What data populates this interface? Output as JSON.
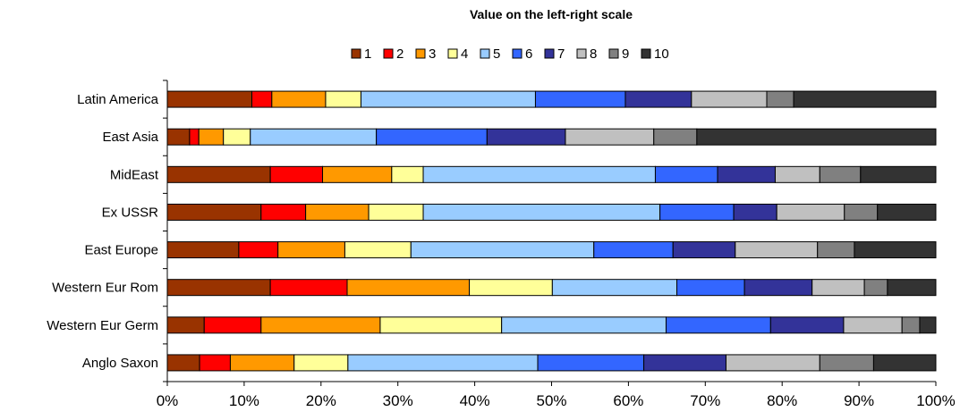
{
  "chart_data": {
    "type": "bar",
    "orientation": "horizontal",
    "stacked": "percent",
    "title": "Value on the left-right scale",
    "xlabel": "",
    "ylabel": "",
    "xlim": [
      0,
      100
    ],
    "x_ticks": [
      "0%",
      "10%",
      "20%",
      "30%",
      "40%",
      "50%",
      "60%",
      "70%",
      "80%",
      "90%",
      "100%"
    ],
    "legend_position": "top",
    "grid": false,
    "categories": [
      "Latin America",
      "East Asia",
      "MidEast",
      "Ex USSR",
      "East Europe",
      "Western Eur Rom",
      "Western Eur Germ",
      "Anglo Saxon"
    ],
    "series": [
      {
        "name": "1",
        "color": "#993300",
        "values": [
          11.0,
          2.9,
          13.4,
          12.2,
          9.3,
          13.4,
          4.8,
          4.2
        ]
      },
      {
        "name": "2",
        "color": "#FF0000",
        "values": [
          2.6,
          1.2,
          6.8,
          5.8,
          5.1,
          10.0,
          7.4,
          4.0
        ]
      },
      {
        "name": "3",
        "color": "#FF9900",
        "values": [
          7.0,
          3.2,
          9.0,
          8.2,
          8.7,
          15.9,
          15.5,
          8.3
        ]
      },
      {
        "name": "4",
        "color": "#FFFF99",
        "values": [
          4.6,
          3.5,
          4.1,
          7.1,
          8.6,
          10.8,
          15.8,
          7.0
        ]
      },
      {
        "name": "5",
        "color": "#99CCFF",
        "values": [
          22.7,
          16.4,
          30.2,
          30.8,
          23.8,
          16.2,
          21.4,
          24.7
        ]
      },
      {
        "name": "6",
        "color": "#3366FF",
        "values": [
          11.7,
          14.4,
          8.1,
          9.6,
          10.3,
          8.8,
          13.6,
          13.8
        ]
      },
      {
        "name": "7",
        "color": "#333399",
        "values": [
          8.6,
          10.2,
          7.5,
          5.6,
          8.1,
          8.8,
          9.5,
          10.7
        ]
      },
      {
        "name": "8",
        "color": "#C0C0C0",
        "values": [
          9.8,
          11.5,
          5.8,
          8.8,
          10.7,
          6.8,
          7.6,
          12.2
        ]
      },
      {
        "name": "9",
        "color": "#808080",
        "values": [
          3.5,
          5.6,
          5.3,
          4.3,
          4.8,
          3.0,
          2.3,
          7.0
        ]
      },
      {
        "name": "10",
        "color": "#333333",
        "values": [
          18.5,
          31.1,
          9.8,
          7.6,
          10.6,
          6.3,
          2.1,
          8.1
        ]
      }
    ]
  }
}
